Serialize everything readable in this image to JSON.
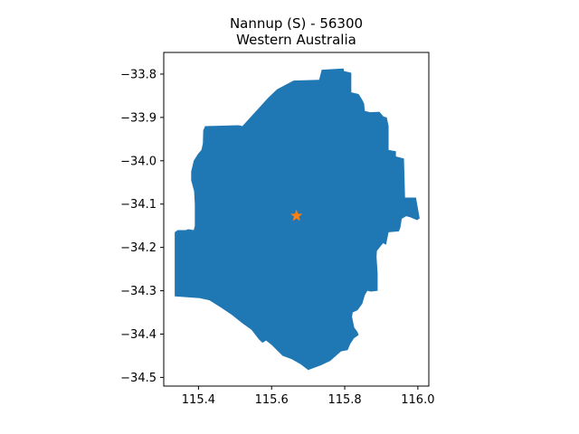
{
  "chart_data": {
    "type": "map",
    "title": "Nannup (S) - 56300",
    "subtitle": "Western Australia",
    "xlabel": "",
    "ylabel": "",
    "xlim": [
      115.305,
      116.03
    ],
    "ylim": [
      -34.52,
      -33.75
    ],
    "xticks": [
      {
        "value": 115.4,
        "label": "115.4"
      },
      {
        "value": 115.6,
        "label": "115.6"
      },
      {
        "value": 115.8,
        "label": "115.8"
      },
      {
        "value": 116.0,
        "label": "116.0"
      }
    ],
    "yticks": [
      {
        "value": -33.8,
        "label": "−33.8"
      },
      {
        "value": -33.9,
        "label": "−33.9"
      },
      {
        "value": -34.0,
        "label": "−34.0"
      },
      {
        "value": -34.1,
        "label": "−34.1"
      },
      {
        "value": -34.2,
        "label": "−34.2"
      },
      {
        "value": -34.3,
        "label": "−34.3"
      },
      {
        "value": -34.4,
        "label": "−34.4"
      },
      {
        "value": -34.5,
        "label": "−34.5"
      }
    ],
    "region": {
      "name": "Nannup (S)",
      "color": "#1f77b4",
      "boundary": [
        [
          115.615,
          -33.835
        ],
        [
          115.66,
          -33.815
        ],
        [
          115.73,
          -33.813
        ],
        [
          115.737,
          -33.79
        ],
        [
          115.797,
          -33.787
        ],
        [
          115.798,
          -33.793
        ],
        [
          115.818,
          -33.797
        ],
        [
          115.818,
          -33.842
        ],
        [
          115.838,
          -33.846
        ],
        [
          115.847,
          -33.858
        ],
        [
          115.853,
          -33.868
        ],
        [
          115.855,
          -33.885
        ],
        [
          115.87,
          -33.888
        ],
        [
          115.895,
          -33.887
        ],
        [
          115.906,
          -33.898
        ],
        [
          115.915,
          -33.9
        ],
        [
          115.92,
          -33.92
        ],
        [
          115.92,
          -33.975
        ],
        [
          115.94,
          -33.978
        ],
        [
          115.94,
          -33.99
        ],
        [
          115.962,
          -33.995
        ],
        [
          115.965,
          -34.085
        ],
        [
          115.995,
          -34.085
        ],
        [
          115.996,
          -34.09
        ],
        [
          116.005,
          -34.133
        ],
        [
          115.998,
          -34.137
        ],
        [
          115.978,
          -34.13
        ],
        [
          115.968,
          -34.128
        ],
        [
          115.956,
          -34.134
        ],
        [
          115.952,
          -34.155
        ],
        [
          115.948,
          -34.163
        ],
        [
          115.92,
          -34.165
        ],
        [
          115.913,
          -34.194
        ],
        [
          115.905,
          -34.19
        ],
        [
          115.888,
          -34.208
        ],
        [
          115.887,
          -34.222
        ],
        [
          115.89,
          -34.26
        ],
        [
          115.89,
          -34.3
        ],
        [
          115.872,
          -34.302
        ],
        [
          115.862,
          -34.3
        ],
        [
          115.855,
          -34.31
        ],
        [
          115.848,
          -34.33
        ],
        [
          115.835,
          -34.345
        ],
        [
          115.822,
          -34.35
        ],
        [
          115.82,
          -34.36
        ],
        [
          115.826,
          -34.385
        ],
        [
          115.835,
          -34.395
        ],
        [
          115.838,
          -34.402
        ],
        [
          115.825,
          -34.41
        ],
        [
          115.815,
          -34.423
        ],
        [
          115.808,
          -34.437
        ],
        [
          115.79,
          -34.44
        ],
        [
          115.76,
          -34.462
        ],
        [
          115.735,
          -34.472
        ],
        [
          115.7,
          -34.483
        ],
        [
          115.68,
          -34.47
        ],
        [
          115.655,
          -34.458
        ],
        [
          115.63,
          -34.45
        ],
        [
          115.6,
          -34.425
        ],
        [
          115.585,
          -34.415
        ],
        [
          115.575,
          -34.42
        ],
        [
          115.565,
          -34.412
        ],
        [
          115.545,
          -34.39
        ],
        [
          115.52,
          -34.375
        ],
        [
          115.49,
          -34.355
        ],
        [
          115.46,
          -34.338
        ],
        [
          115.43,
          -34.322
        ],
        [
          115.403,
          -34.317
        ],
        [
          115.335,
          -34.313
        ],
        [
          115.335,
          -34.165
        ],
        [
          115.343,
          -34.16
        ],
        [
          115.365,
          -34.16
        ],
        [
          115.372,
          -34.158
        ],
        [
          115.387,
          -34.16
        ],
        [
          115.39,
          -34.15
        ],
        [
          115.39,
          -34.1
        ],
        [
          115.388,
          -34.07
        ],
        [
          115.38,
          -34.045
        ],
        [
          115.38,
          -34.025
        ],
        [
          115.387,
          -34.0
        ],
        [
          115.398,
          -33.985
        ],
        [
          115.408,
          -33.975
        ],
        [
          115.412,
          -33.96
        ],
        [
          115.413,
          -33.93
        ],
        [
          115.418,
          -33.92
        ],
        [
          115.51,
          -33.918
        ],
        [
          115.52,
          -33.92
        ],
        [
          115.533,
          -33.908
        ],
        [
          115.56,
          -33.883
        ],
        [
          115.59,
          -33.855
        ]
      ]
    },
    "marker": {
      "label": "",
      "symbol": "star",
      "color": "#ff7f0e",
      "lon": 115.668,
      "lat": -34.127
    }
  }
}
